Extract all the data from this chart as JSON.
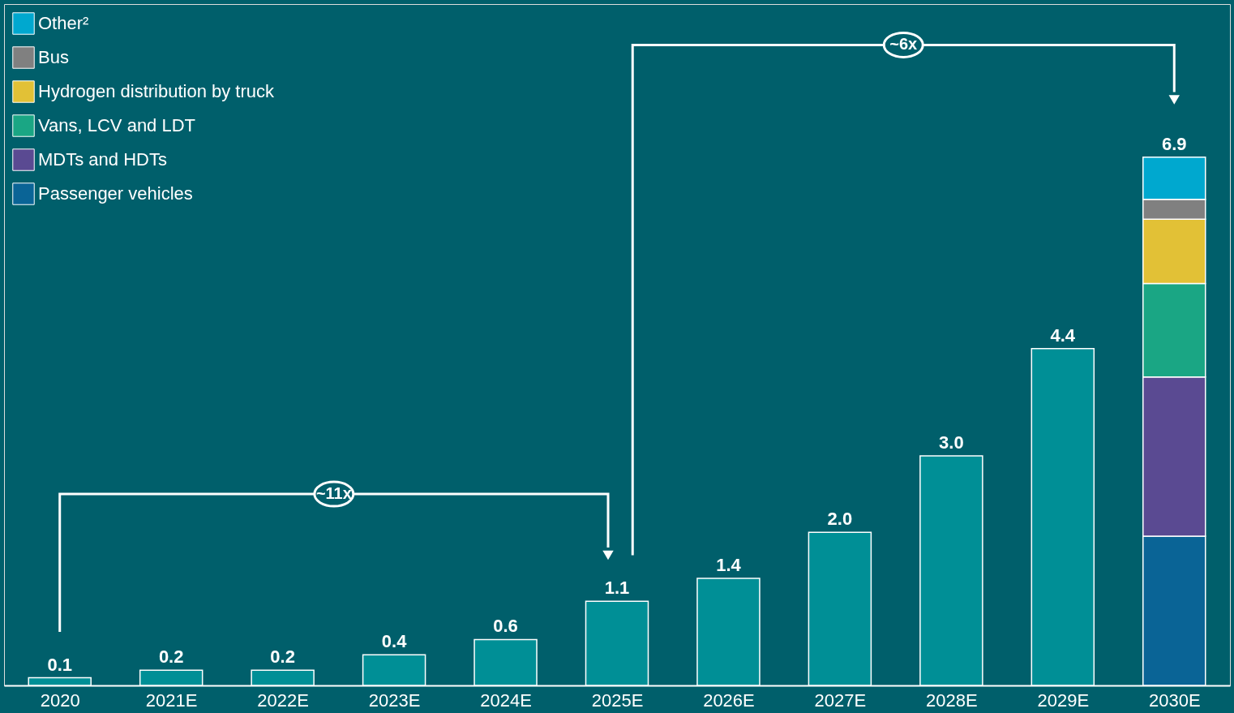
{
  "chart_data": {
    "type": "bar",
    "stacked": true,
    "legend": "top left",
    "categories": [
      "2020",
      "2021E",
      "2022E",
      "2023E",
      "2024E",
      "2025E",
      "2026E",
      "2027E",
      "2028E",
      "2029E",
      "2030E"
    ],
    "series": [
      {
        "color": "#008f96",
        "values": [
          0.1,
          0.2,
          0.2,
          0.4,
          0.6,
          1.1,
          1.4,
          2.0,
          3.0,
          4.4,
          null
        ],
        "value_labels": [
          "0.1",
          "0.2",
          "0.2",
          "0.4",
          "0.6",
          "1.1",
          "1.4",
          "2.0",
          "3.0",
          "4.4",
          null
        ]
      },
      {
        "name": "Passenger vehicles",
        "color": "#0a6496",
        "values": [
          null,
          null,
          null,
          null,
          null,
          null,
          null,
          null,
          null,
          null,
          1.95
        ]
      },
      {
        "name": "MDTs and HDTs",
        "color": "#5a4a92",
        "values": [
          null,
          null,
          null,
          null,
          null,
          null,
          null,
          null,
          null,
          null,
          2.08
        ]
      },
      {
        "name": "Vans, LCV and LDT",
        "color": "#1aa684",
        "values": [
          null,
          null,
          null,
          null,
          null,
          null,
          null,
          null,
          null,
          null,
          1.22
        ]
      },
      {
        "name": "Hydrogen distribution by truck",
        "color": "#e2c136",
        "values": [
          null,
          null,
          null,
          null,
          null,
          null,
          null,
          null,
          null,
          null,
          0.84
        ]
      },
      {
        "name": "Bus",
        "color": "#808080",
        "values": [
          null,
          null,
          null,
          null,
          null,
          null,
          null,
          null,
          null,
          null,
          0.26
        ]
      },
      {
        "name": "Other²",
        "color": "#00a8cf",
        "values": [
          null,
          null,
          null,
          null,
          null,
          null,
          null,
          null,
          null,
          null,
          0.55
        ]
      }
    ],
    "totals": [
      null,
      null,
      null,
      null,
      null,
      null,
      null,
      null,
      null,
      null,
      "6.9"
    ],
    "annotations": [
      "~11x",
      "~6x"
    ]
  }
}
